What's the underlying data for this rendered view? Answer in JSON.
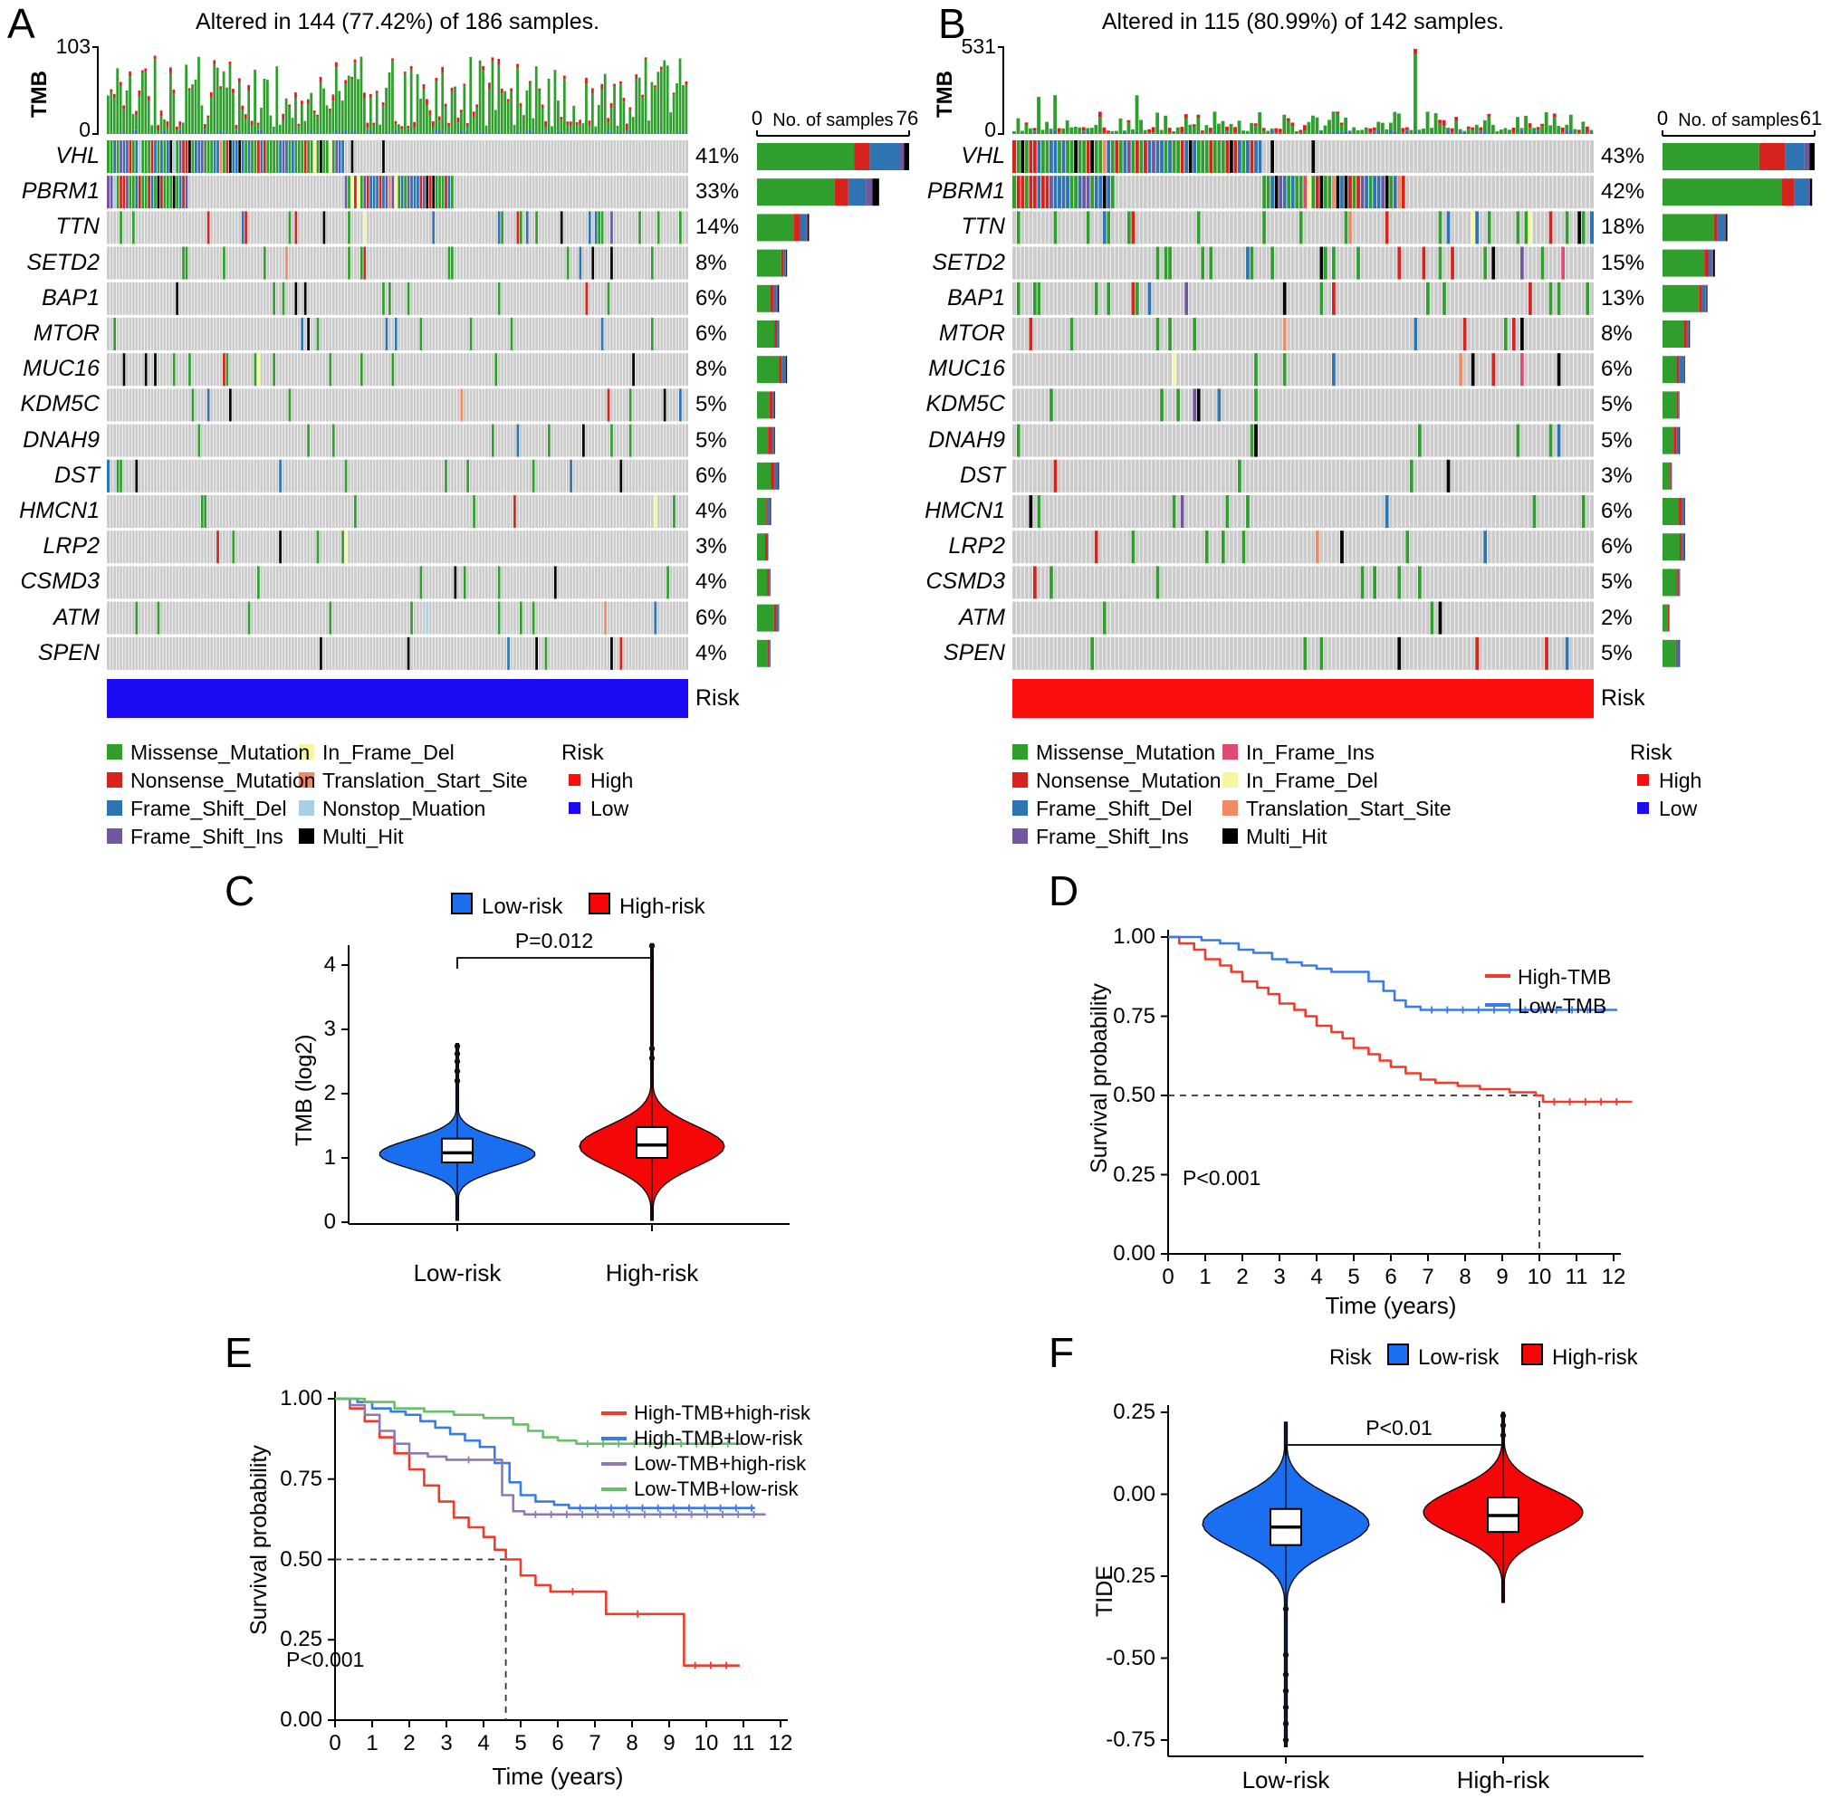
{
  "chart_data": {
    "colors": {
      "mutation": {
        "Missense_Mutation": "#2f9e2d",
        "Nonsense_Mutation": "#d6231e",
        "Frame_Shift_Del": "#2e73b2",
        "Frame_Shift_Ins": "#71589e",
        "In_Frame_Del": "#f6f6a1",
        "In_Frame_Ins": "#e04a72",
        "Translation_Start_Site": "#f08a63",
        "Nonstop_Muation": "#a9cfe4",
        "Multi_Hit": "#000000"
      },
      "risk": {
        "High": "#fb0d0c",
        "Low": "#1d0cf2"
      },
      "background_tile": "#cbcbcb"
    },
    "panelA": {
      "type": "oncoplot-waterfall",
      "label": "A",
      "title": "Altered in 144 (77.42%) of 186 samples.",
      "n_samples": 186,
      "seed": 11,
      "tmb_axis": {
        "ylabel": "TMB",
        "max": "103",
        "min": "0"
      },
      "samples_axis": {
        "label": "No. of samples",
        "min": "0",
        "max": "76"
      },
      "genes": [
        {
          "name": "VHL",
          "pct": 41
        },
        {
          "name": "PBRM1",
          "pct": 33
        },
        {
          "name": "TTN",
          "pct": 14
        },
        {
          "name": "SETD2",
          "pct": 8
        },
        {
          "name": "BAP1",
          "pct": 6
        },
        {
          "name": "MTOR",
          "pct": 6
        },
        {
          "name": "MUC16",
          "pct": 8
        },
        {
          "name": "KDM5C",
          "pct": 5
        },
        {
          "name": "DNAH9",
          "pct": 5
        },
        {
          "name": "DST",
          "pct": 6
        },
        {
          "name": "HMCN1",
          "pct": 4
        },
        {
          "name": "LRP2",
          "pct": 3
        },
        {
          "name": "CSMD3",
          "pct": 4
        },
        {
          "name": "ATM",
          "pct": 6
        },
        {
          "name": "SPEN",
          "pct": 4
        }
      ],
      "risk_bar": {
        "label": "Risk",
        "value": "Low"
      },
      "legend_mutations": [
        "Missense_Mutation",
        "Nonsense_Mutation",
        "Frame_Shift_Del",
        "Frame_Shift_Ins",
        "In_Frame_Del",
        "Translation_Start_Site",
        "Nonstop_Muation",
        "Multi_Hit"
      ],
      "legend_risk": {
        "title": "Risk",
        "items": [
          "High",
          "Low"
        ]
      }
    },
    "panelB": {
      "type": "oncoplot-waterfall",
      "label": "B",
      "title": "Altered in 115 (80.99%) of 142 samples.",
      "n_samples": 142,
      "seed": 77,
      "tmb_axis": {
        "ylabel": "TMB",
        "max": "531",
        "min": "0"
      },
      "samples_axis": {
        "label": "No. of samples",
        "min": "0",
        "max": "61"
      },
      "genes": [
        {
          "name": "VHL",
          "pct": 43
        },
        {
          "name": "PBRM1",
          "pct": 42
        },
        {
          "name": "TTN",
          "pct": 18
        },
        {
          "name": "SETD2",
          "pct": 15
        },
        {
          "name": "BAP1",
          "pct": 13
        },
        {
          "name": "MTOR",
          "pct": 8
        },
        {
          "name": "MUC16",
          "pct": 6
        },
        {
          "name": "KDM5C",
          "pct": 5
        },
        {
          "name": "DNAH9",
          "pct": 5
        },
        {
          "name": "DST",
          "pct": 3
        },
        {
          "name": "HMCN1",
          "pct": 6
        },
        {
          "name": "LRP2",
          "pct": 6
        },
        {
          "name": "CSMD3",
          "pct": 5
        },
        {
          "name": "ATM",
          "pct": 2
        },
        {
          "name": "SPEN",
          "pct": 5
        }
      ],
      "risk_bar": {
        "label": "Risk",
        "value": "High"
      },
      "legend_mutations": [
        "Missense_Mutation",
        "Nonsense_Mutation",
        "Frame_Shift_Del",
        "Frame_Shift_Ins",
        "In_Frame_Ins",
        "In_Frame_Del",
        "Translation_Start_Site",
        "Multi_Hit"
      ],
      "legend_risk": {
        "title": "Risk",
        "items": [
          "High",
          "Low"
        ]
      }
    },
    "panelC": {
      "type": "violin",
      "label": "C",
      "p_value": "P=0.012",
      "ylabel": "TMB (log2)",
      "yticks": [
        {
          "v": 0,
          "label": "0"
        },
        {
          "v": 1,
          "label": "1"
        },
        {
          "v": 2,
          "label": "2"
        },
        {
          "v": 3,
          "label": "3"
        },
        {
          "v": 4,
          "label": "4"
        }
      ],
      "legend": [
        {
          "label": "Low-risk",
          "color": "#1a6ff0"
        },
        {
          "label": "High-risk",
          "color": "#f50708"
        }
      ],
      "groups": [
        {
          "label": "Low-risk",
          "color": "#1a6ff0",
          "halfw": 86,
          "stats": {
            "min": 0.03,
            "max": 2.78,
            "mode": 1.06,
            "bw": 0.32,
            "q1": 0.93,
            "median": 1.08,
            "q3": 1.3
          },
          "outliers": [
            2.2,
            2.35,
            2.5,
            2.62,
            2.74
          ]
        },
        {
          "label": "High-risk",
          "color": "#f50708",
          "halfw": 80,
          "stats": {
            "min": 0.03,
            "max": 4.33,
            "mode": 1.18,
            "bw": 0.45,
            "q1": 1.0,
            "median": 1.2,
            "q3": 1.48
          },
          "outliers": [
            2.55,
            2.7,
            4.3
          ]
        }
      ]
    },
    "panelD": {
      "type": "line",
      "label": "D",
      "ylabel": "Survival probability",
      "xlabel": "Time (years)",
      "p_value": "P<0.001",
      "yticks": [
        {
          "v": 1,
          "label": "1.00"
        },
        {
          "v": 0.75,
          "label": "0.75"
        },
        {
          "v": 0.5,
          "label": "0.50"
        },
        {
          "v": 0.25,
          "label": "0.25"
        },
        {
          "v": 0,
          "label": "0.00"
        }
      ],
      "xticks": [
        "0",
        "1",
        "2",
        "3",
        "4",
        "5",
        "6",
        "7",
        "8",
        "9",
        "10",
        "11",
        "12"
      ],
      "median_marker": {
        "x": 10,
        "y": 0.5
      },
      "series": [
        {
          "name": "High-TMB",
          "color": "#ef3b2c",
          "points": [
            [
              0,
              1
            ],
            [
              0.3,
              0.98
            ],
            [
              0.7,
              0.96
            ],
            [
              1,
              0.93
            ],
            [
              1.4,
              0.91
            ],
            [
              1.7,
              0.89
            ],
            [
              2,
              0.86
            ],
            [
              2.4,
              0.84
            ],
            [
              2.7,
              0.82
            ],
            [
              3,
              0.79
            ],
            [
              3.4,
              0.77
            ],
            [
              3.7,
              0.75
            ],
            [
              4,
              0.72
            ],
            [
              4.4,
              0.7
            ],
            [
              4.7,
              0.68
            ],
            [
              5,
              0.65
            ],
            [
              5.4,
              0.63
            ],
            [
              5.7,
              0.61
            ],
            [
              6,
              0.59
            ],
            [
              6.4,
              0.57
            ],
            [
              6.8,
              0.55
            ],
            [
              7.2,
              0.54
            ],
            [
              7.8,
              0.53
            ],
            [
              8.4,
              0.52
            ],
            [
              9.2,
              0.51
            ],
            [
              9.9,
              0.5
            ],
            [
              10.1,
              0.48
            ],
            [
              12.5,
              0.48
            ]
          ]
        },
        {
          "name": "Low-TMB",
          "color": "#3a7bea",
          "points": [
            [
              0,
              1
            ],
            [
              0.9,
              0.99
            ],
            [
              1.4,
              0.98
            ],
            [
              1.9,
              0.96
            ],
            [
              2.3,
              0.95
            ],
            [
              2.8,
              0.93
            ],
            [
              3.2,
              0.92
            ],
            [
              3.6,
              0.91
            ],
            [
              4,
              0.9
            ],
            [
              4.4,
              0.89
            ],
            [
              5.1,
              0.89
            ],
            [
              5.4,
              0.86
            ],
            [
              5.8,
              0.83
            ],
            [
              6.1,
              0.8
            ],
            [
              6.4,
              0.78
            ],
            [
              6.8,
              0.77
            ],
            [
              12.1,
              0.77
            ]
          ]
        }
      ]
    },
    "panelE": {
      "type": "line",
      "label": "E",
      "ylabel": "Survival probability",
      "xlabel": "Time (years)",
      "p_value": "P<0.001",
      "yticks": [
        {
          "v": 1,
          "label": "1.00"
        },
        {
          "v": 0.75,
          "label": "0.75"
        },
        {
          "v": 0.5,
          "label": "0.50"
        },
        {
          "v": 0.25,
          "label": "0.25"
        },
        {
          "v": 0,
          "label": "0.00"
        }
      ],
      "xticks": [
        "0",
        "1",
        "2",
        "3",
        "4",
        "5",
        "6",
        "7",
        "8",
        "9",
        "10",
        "11",
        "12"
      ],
      "median_marker": {
        "x": 4.6,
        "y": 0.5
      },
      "series": [
        {
          "name": "High-TMB+high-risk",
          "color": "#ef3b2c",
          "points": [
            [
              0,
              1
            ],
            [
              0.4,
              0.97
            ],
            [
              0.8,
              0.93
            ],
            [
              1.2,
              0.88
            ],
            [
              1.6,
              0.83
            ],
            [
              2,
              0.78
            ],
            [
              2.4,
              0.73
            ],
            [
              2.8,
              0.68
            ],
            [
              3.2,
              0.63
            ],
            [
              3.6,
              0.6
            ],
            [
              4,
              0.57
            ],
            [
              4.3,
              0.53
            ],
            [
              4.6,
              0.5
            ],
            [
              5,
              0.45
            ],
            [
              5.4,
              0.42
            ],
            [
              5.8,
              0.4
            ],
            [
              7,
              0.4
            ],
            [
              7.3,
              0.33
            ],
            [
              9,
              0.33
            ],
            [
              9.4,
              0.17
            ],
            [
              10.9,
              0.17
            ]
          ]
        },
        {
          "name": "High-TMB+low-risk",
          "color": "#3a7bea",
          "points": [
            [
              0,
              1
            ],
            [
              0.6,
              0.99
            ],
            [
              1,
              0.97
            ],
            [
              1.5,
              0.96
            ],
            [
              1.9,
              0.95
            ],
            [
              2.3,
              0.93
            ],
            [
              2.7,
              0.91
            ],
            [
              3.1,
              0.89
            ],
            [
              3.5,
              0.87
            ],
            [
              3.9,
              0.85
            ],
            [
              4.3,
              0.8
            ],
            [
              4.7,
              0.74
            ],
            [
              5,
              0.7
            ],
            [
              5.4,
              0.68
            ],
            [
              5.9,
              0.67
            ],
            [
              6.3,
              0.66
            ],
            [
              11.3,
              0.66
            ]
          ]
        },
        {
          "name": "Low-TMB+high-risk",
          "color": "#8d7ab5",
          "points": [
            [
              0,
              1
            ],
            [
              0.4,
              0.98
            ],
            [
              0.8,
              0.95
            ],
            [
              1.2,
              0.9
            ],
            [
              1.6,
              0.86
            ],
            [
              2,
              0.83
            ],
            [
              2.5,
              0.82
            ],
            [
              3,
              0.81
            ],
            [
              4.2,
              0.81
            ],
            [
              4.5,
              0.7
            ],
            [
              4.8,
              0.65
            ],
            [
              5.1,
              0.64
            ],
            [
              11.6,
              0.64
            ]
          ]
        },
        {
          "name": "Low-TMB+low-risk",
          "color": "#67bf68",
          "points": [
            [
              0,
              1
            ],
            [
              0.8,
              0.99
            ],
            [
              1.6,
              0.97
            ],
            [
              2.4,
              0.96
            ],
            [
              3.2,
              0.95
            ],
            [
              4,
              0.94
            ],
            [
              4.8,
              0.92
            ],
            [
              5.2,
              0.9
            ],
            [
              5.6,
              0.88
            ],
            [
              6,
              0.87
            ],
            [
              6.5,
              0.86
            ],
            [
              11,
              0.86
            ]
          ]
        }
      ]
    },
    "panelF": {
      "type": "violin",
      "label": "F",
      "legend_title": "Risk",
      "p_value": "P<0.01",
      "ylabel": "TIDE",
      "yticks": [
        {
          "v": 0.25,
          "label": "0.25"
        },
        {
          "v": 0,
          "label": "0.00"
        },
        {
          "v": -0.25,
          "label": "-0.25"
        },
        {
          "v": -0.5,
          "label": "-0.50"
        },
        {
          "v": -0.75,
          "label": "-0.75"
        }
      ],
      "legend": [
        {
          "label": "Low-risk",
          "color": "#1a6ff0"
        },
        {
          "label": "High-risk",
          "color": "#f50708"
        }
      ],
      "groups": [
        {
          "label": "Low-risk",
          "color": "#1a6ff0",
          "halfw": 92,
          "stats": {
            "min": -0.77,
            "max": 0.22,
            "mode": -0.09,
            "bw": 0.11,
            "q1": -0.155,
            "median": -0.1,
            "q3": -0.045
          },
          "outliers": [
            -0.35,
            -0.49,
            -0.55,
            -0.6,
            -0.65,
            -0.7,
            -0.75
          ]
        },
        {
          "label": "High-risk",
          "color": "#f50708",
          "halfw": 88,
          "stats": {
            "min": -0.33,
            "max": 0.25,
            "mode": -0.055,
            "bw": 0.1,
            "q1": -0.115,
            "median": -0.065,
            "q3": -0.01
          },
          "outliers": [
            0.18,
            0.21,
            0.24
          ]
        }
      ]
    }
  }
}
